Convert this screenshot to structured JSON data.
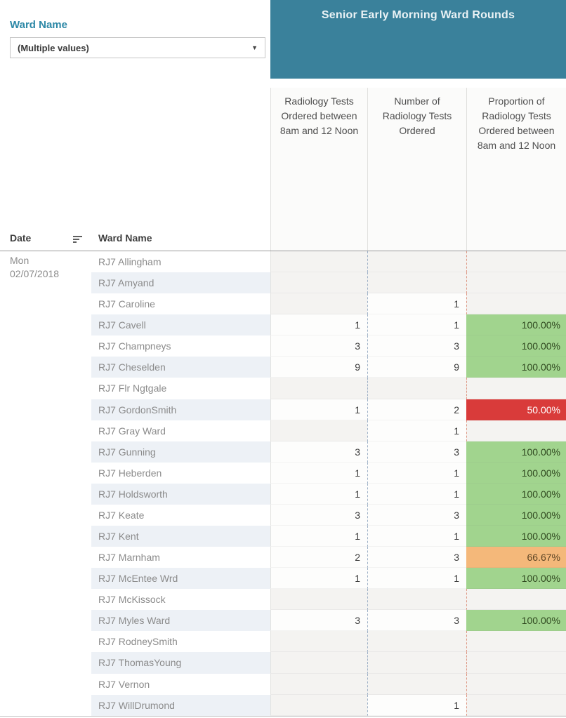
{
  "title": "Senior Early Morning Ward Rounds",
  "filter": {
    "label": "Ward Name",
    "value": "(Multiple values)",
    "caret": "▼"
  },
  "row_headers": {
    "date": "Date",
    "ward": "Ward Name"
  },
  "date": {
    "day": "Mon",
    "value": "02/07/2018"
  },
  "theme": {
    "banner_bg": "#3a819b",
    "banner_text": "#eaf2f5",
    "filter_label_color": "#2e89a7",
    "band_row_bg": "#edf1f6",
    "empty_cell_bg": "#f4f3f1",
    "blue_divider": "#9db0c6",
    "red_divider": "#de9986",
    "status_colors": {
      "green": "#a1d48e",
      "orange": "#f4b87a",
      "red": "#d93b3a"
    },
    "status_text_colors": {
      "green": "#2f481f",
      "orange": "#5c4424",
      "red": "#ffffff"
    }
  },
  "chart_data": {
    "type": "table",
    "title": "Senior Early Morning Ward Rounds",
    "date_group": "Mon 02/07/2018",
    "columns": [
      "Date",
      "Ward Name",
      "Radiology Tests Ordered between 8am and 12 Noon",
      "Number of Radiology Tests Ordered",
      "Proportion of Radiology Tests Ordered between 8am and 12 Noon"
    ],
    "rows": [
      {
        "ward": "RJ7 Allingham",
        "tests_8am_to_noon": "",
        "total_tests": "",
        "proportion": "",
        "status": "none"
      },
      {
        "ward": "RJ7 Amyand",
        "tests_8am_to_noon": "",
        "total_tests": "",
        "proportion": "",
        "status": "none"
      },
      {
        "ward": "RJ7 Caroline",
        "tests_8am_to_noon": "",
        "total_tests": "1",
        "proportion": "",
        "status": "none"
      },
      {
        "ward": "RJ7 Cavell",
        "tests_8am_to_noon": "1",
        "total_tests": "1",
        "proportion": "100.00%",
        "status": "green"
      },
      {
        "ward": "RJ7 Champneys",
        "tests_8am_to_noon": "3",
        "total_tests": "3",
        "proportion": "100.00%",
        "status": "green"
      },
      {
        "ward": "RJ7 Cheselden",
        "tests_8am_to_noon": "9",
        "total_tests": "9",
        "proportion": "100.00%",
        "status": "green"
      },
      {
        "ward": "RJ7 Flr Ngtgale",
        "tests_8am_to_noon": "",
        "total_tests": "",
        "proportion": "",
        "status": "none"
      },
      {
        "ward": "RJ7 GordonSmith",
        "tests_8am_to_noon": "1",
        "total_tests": "2",
        "proportion": "50.00%",
        "status": "red"
      },
      {
        "ward": "RJ7 Gray Ward",
        "tests_8am_to_noon": "",
        "total_tests": "1",
        "proportion": "",
        "status": "none"
      },
      {
        "ward": "RJ7 Gunning",
        "tests_8am_to_noon": "3",
        "total_tests": "3",
        "proportion": "100.00%",
        "status": "green"
      },
      {
        "ward": "RJ7 Heberden",
        "tests_8am_to_noon": "1",
        "total_tests": "1",
        "proportion": "100.00%",
        "status": "green"
      },
      {
        "ward": "RJ7 Holdsworth",
        "tests_8am_to_noon": "1",
        "total_tests": "1",
        "proportion": "100.00%",
        "status": "green"
      },
      {
        "ward": "RJ7 Keate",
        "tests_8am_to_noon": "3",
        "total_tests": "3",
        "proportion": "100.00%",
        "status": "green"
      },
      {
        "ward": "RJ7 Kent",
        "tests_8am_to_noon": "1",
        "total_tests": "1",
        "proportion": "100.00%",
        "status": "green"
      },
      {
        "ward": "RJ7 Marnham",
        "tests_8am_to_noon": "2",
        "total_tests": "3",
        "proportion": "66.67%",
        "status": "orange"
      },
      {
        "ward": "RJ7 McEntee Wrd",
        "tests_8am_to_noon": "1",
        "total_tests": "1",
        "proportion": "100.00%",
        "status": "green"
      },
      {
        "ward": "RJ7 McKissock",
        "tests_8am_to_noon": "",
        "total_tests": "",
        "proportion": "",
        "status": "none"
      },
      {
        "ward": "RJ7 Myles Ward",
        "tests_8am_to_noon": "3",
        "total_tests": "3",
        "proportion": "100.00%",
        "status": "green"
      },
      {
        "ward": "RJ7 RodneySmith",
        "tests_8am_to_noon": "",
        "total_tests": "",
        "proportion": "",
        "status": "none"
      },
      {
        "ward": "RJ7 ThomasYoung",
        "tests_8am_to_noon": "",
        "total_tests": "",
        "proportion": "",
        "status": "none"
      },
      {
        "ward": "RJ7 Vernon",
        "tests_8am_to_noon": "",
        "total_tests": "",
        "proportion": "",
        "status": "none"
      },
      {
        "ward": "RJ7 WillDrumond",
        "tests_8am_to_noon": "",
        "total_tests": "1",
        "proportion": "",
        "status": "none"
      }
    ]
  }
}
